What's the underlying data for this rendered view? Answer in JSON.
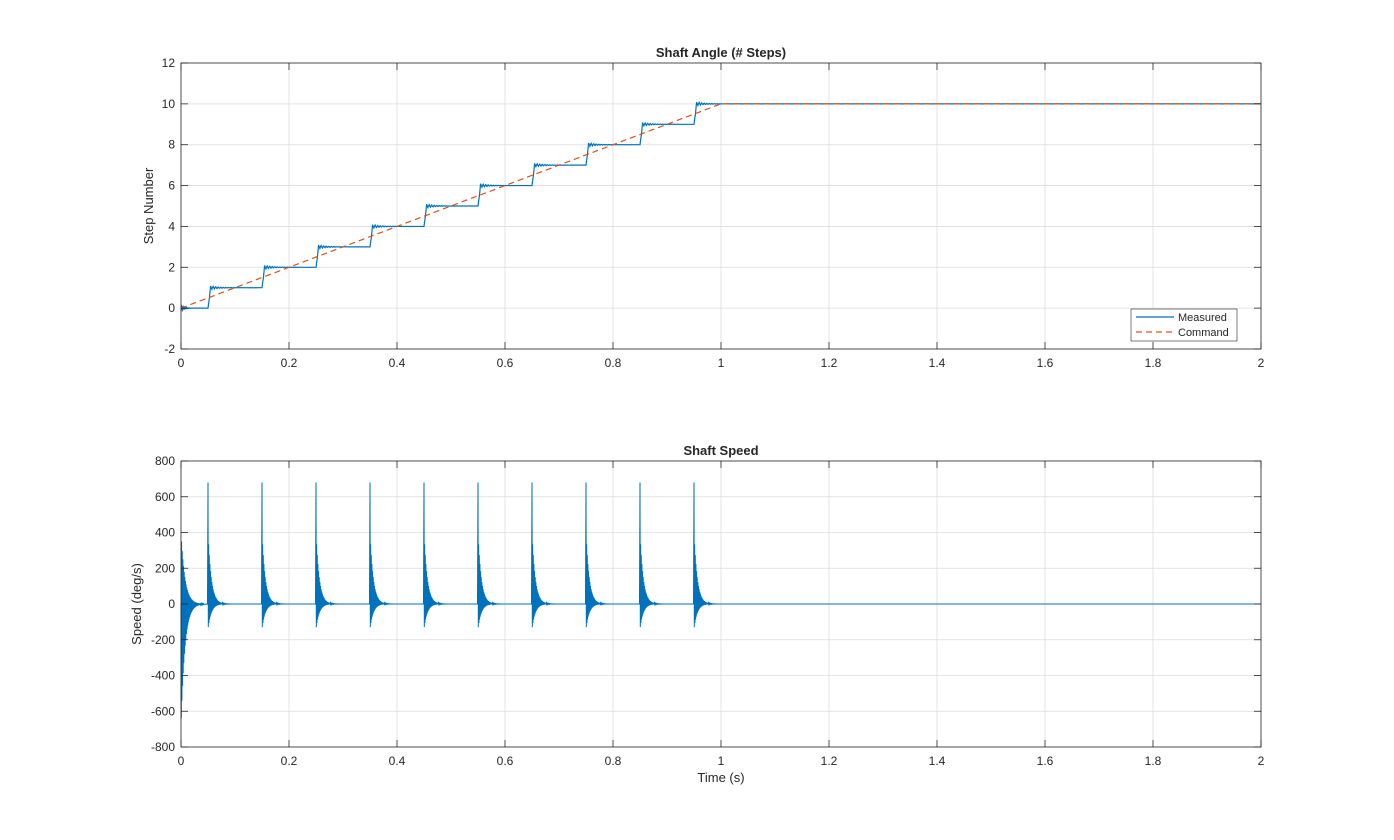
{
  "chart_data": [
    {
      "type": "line",
      "title": "Shaft Angle (# Steps)",
      "xlabel": "",
      "ylabel": "Step Number",
      "xlim": [
        0,
        2
      ],
      "ylim": [
        -2,
        12
      ],
      "xticks": [
        "0",
        "0.2",
        "0.4",
        "0.6",
        "0.8",
        "1",
        "1.2",
        "1.4",
        "1.6",
        "1.8",
        "2"
      ],
      "yticks": [
        "-2",
        "0",
        "2",
        "4",
        "6",
        "8",
        "10",
        "12"
      ],
      "grid": true,
      "legend_position": "bottom-right",
      "series": [
        {
          "name": "Measured",
          "color": "#0072BD",
          "style": "solid",
          "step_times": [
            0.05,
            0.15,
            0.25,
            0.35,
            0.45,
            0.55,
            0.65,
            0.75,
            0.85,
            0.95
          ],
          "x": [
            0,
            0.05,
            0.15,
            0.25,
            0.35,
            0.45,
            0.55,
            0.65,
            0.75,
            0.85,
            0.95,
            2
          ],
          "y": [
            0,
            1,
            2,
            3,
            4,
            5,
            6,
            7,
            8,
            9,
            10,
            10
          ]
        },
        {
          "name": "Command",
          "color": "#D95319",
          "style": "dashed",
          "x": [
            0,
            1,
            2
          ],
          "y": [
            0,
            10,
            10
          ]
        }
      ]
    },
    {
      "type": "line",
      "title": "Shaft Speed",
      "xlabel": "Time (s)",
      "ylabel": "Speed (deg/s)",
      "xlim": [
        0,
        2
      ],
      "ylim": [
        -800,
        800
      ],
      "xticks": [
        "0",
        "0.2",
        "0.4",
        "0.6",
        "0.8",
        "1",
        "1.2",
        "1.4",
        "1.6",
        "1.8",
        "2"
      ],
      "yticks": [
        "-800",
        "-600",
        "-400",
        "-200",
        "0",
        "200",
        "400",
        "600",
        "800"
      ],
      "grid": true,
      "series": [
        {
          "color": "#0072BD",
          "style": "solid",
          "spike_times": [
            0.05,
            0.15,
            0.25,
            0.35,
            0.45,
            0.55,
            0.65,
            0.75,
            0.85,
            0.95
          ],
          "spike_peak": 680,
          "initial_transient_min": -640,
          "initial_transient_max": 380,
          "steady_value": 0
        }
      ]
    }
  ]
}
